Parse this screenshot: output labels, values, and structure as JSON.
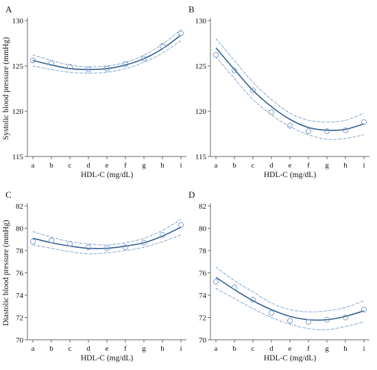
{
  "chart_data": [
    {
      "panel": "A",
      "type": "scatter",
      "categories": [
        "a",
        "b",
        "c",
        "d",
        "e",
        "f",
        "g",
        "h",
        "i"
      ],
      "xlabel": "HDL-C (mg/dL)",
      "ylabel": "Systolic blood pressure (mmHg)",
      "ylim": [
        115,
        130
      ],
      "yticks": [
        115,
        120,
        125,
        130
      ],
      "points": [
        125.6,
        125.3,
        124.9,
        124.6,
        124.7,
        125.2,
        125.8,
        127.2,
        128.6
      ],
      "fit": [
        125.6,
        125.1,
        124.7,
        124.6,
        124.7,
        125.1,
        125.8,
        126.9,
        128.4
      ],
      "ci_upper": [
        126.2,
        125.6,
        125.1,
        124.9,
        125.0,
        125.4,
        126.2,
        127.4,
        129.0
      ],
      "ci_lower": [
        125.0,
        124.6,
        124.3,
        124.2,
        124.3,
        124.7,
        125.4,
        126.4,
        127.8
      ]
    },
    {
      "panel": "B",
      "type": "scatter",
      "categories": [
        "a",
        "b",
        "c",
        "d",
        "e",
        "f",
        "g",
        "h",
        "i"
      ],
      "xlabel": "HDL-C (mg/dL)",
      "ylabel": "",
      "ylim": [
        115,
        130
      ],
      "yticks": [
        115,
        120,
        125,
        130
      ],
      "points": [
        126.2,
        124.5,
        122.3,
        119.9,
        118.4,
        117.8,
        117.8,
        117.9,
        118.8
      ],
      "fit": [
        127.0,
        124.6,
        122.3,
        120.5,
        119.1,
        118.2,
        117.9,
        118.0,
        118.6
      ],
      "ci_upper": [
        128.0,
        125.6,
        123.2,
        121.3,
        119.8,
        119.0,
        118.8,
        119.0,
        119.8
      ],
      "ci_lower": [
        126.0,
        123.6,
        121.3,
        119.6,
        118.3,
        117.4,
        116.9,
        117.0,
        117.4
      ]
    },
    {
      "panel": "C",
      "type": "scatter",
      "categories": [
        "a",
        "b",
        "c",
        "d",
        "e",
        "f",
        "g",
        "h",
        "i"
      ],
      "xlabel": "HDL-C (mg/dL)",
      "ylabel": "Diastolic blood pressure (mmHg)",
      "ylim": [
        70,
        82
      ],
      "yticks": [
        70,
        72,
        74,
        76,
        78,
        80,
        82
      ],
      "points": [
        78.8,
        78.9,
        78.6,
        78.3,
        78.2,
        78.3,
        78.7,
        79.4,
        80.3
      ],
      "fit": [
        79.1,
        78.7,
        78.4,
        78.2,
        78.2,
        78.4,
        78.7,
        79.3,
        80.1
      ],
      "ci_upper": [
        79.7,
        79.2,
        78.8,
        78.6,
        78.5,
        78.7,
        79.1,
        79.8,
        80.8
      ],
      "ci_lower": [
        78.5,
        78.2,
        77.9,
        77.7,
        77.8,
        78.0,
        78.3,
        78.8,
        79.4
      ]
    },
    {
      "panel": "D",
      "type": "scatter",
      "categories": [
        "a",
        "b",
        "c",
        "d",
        "e",
        "f",
        "g",
        "h",
        "i"
      ],
      "xlabel": "HDL-C (mg/dL)",
      "ylabel": "",
      "ylim": [
        70,
        82
      ],
      "yticks": [
        70,
        72,
        74,
        76,
        78,
        80,
        82
      ],
      "points": [
        75.2,
        74.7,
        73.6,
        72.4,
        71.7,
        71.6,
        71.8,
        72.0,
        72.7
      ],
      "fit": [
        75.6,
        74.5,
        73.5,
        72.7,
        72.1,
        71.8,
        71.8,
        72.1,
        72.6
      ],
      "ci_upper": [
        76.5,
        75.3,
        74.3,
        73.3,
        72.7,
        72.5,
        72.6,
        72.9,
        73.5
      ],
      "ci_lower": [
        74.6,
        73.7,
        72.8,
        72.0,
        71.4,
        71.0,
        70.9,
        71.2,
        71.6
      ]
    }
  ],
  "colors": {
    "fit_line": "#2f5b8f",
    "ci_line": "#5d8cc4",
    "marker": "#7a9cc8",
    "axis": "#666666",
    "text": "#111111"
  }
}
